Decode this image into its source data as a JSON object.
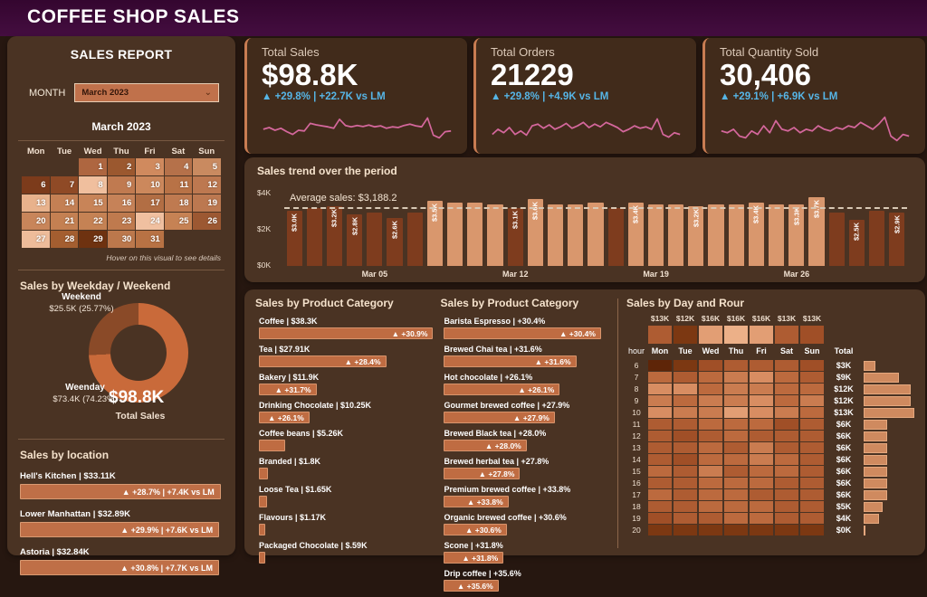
{
  "header": {
    "title": "COFFEE SHOP SALES"
  },
  "sidebar": {
    "title": "SALES REPORT",
    "month_label": "MONTH",
    "month_value": "March 2023",
    "hint": "Hover on this visual to see details",
    "locations_title": "Sales by location"
  },
  "kpis": [
    {
      "label": "Total Sales",
      "value": "$98.8K",
      "change": "▲ +29.8% | +22.7K vs LM",
      "spark": [
        45,
        50,
        42,
        48,
        38,
        30,
        42,
        40,
        62,
        58,
        55,
        52,
        48,
        74,
        56,
        52,
        56,
        53,
        57,
        52,
        55,
        48,
        52,
        50,
        56,
        60,
        55,
        52,
        78,
        28,
        20,
        38,
        40
      ]
    },
    {
      "label": "Total Orders",
      "value": "21229",
      "change": "▲ +29.8% | +4.9K vs LM",
      "spark": [
        30,
        45,
        35,
        50,
        30,
        40,
        28,
        55,
        60,
        48,
        58,
        45,
        52,
        62,
        48,
        55,
        65,
        50,
        60,
        52,
        65,
        58,
        50,
        38,
        45,
        55,
        48,
        52,
        45,
        75,
        30,
        22,
        35,
        30
      ]
    },
    {
      "label": "Total Quantity Sold",
      "value": "30,406",
      "change": "▲ +29.1% | +6.9K vs LM",
      "spark": [
        40,
        35,
        45,
        25,
        20,
        40,
        30,
        55,
        35,
        70,
        45,
        40,
        50,
        35,
        45,
        40,
        55,
        45,
        40,
        50,
        45,
        55,
        50,
        65,
        55,
        45,
        60,
        80,
        25,
        12,
        30,
        25
      ]
    }
  ],
  "colors": {
    "bar_dark": "#7e3c1e",
    "bar_light": "#d9976d",
    "accent": "#c87c52",
    "spark": "#d4679c"
  },
  "chart_data": [
    {
      "id": "trend",
      "type": "bar",
      "title": "Sales trend over the period",
      "ylabel": "Sales ($K)",
      "y_max": 4,
      "y_ticks": [
        "$4K",
        "$2K",
        "$0K"
      ],
      "average": 3.1882,
      "average_label": "Average sales: $3,188.2",
      "x_ticks": [
        {
          "label": "Mar 05",
          "index": 4
        },
        {
          "label": "Mar 12",
          "index": 11
        },
        {
          "label": "Mar 19",
          "index": 18
        },
        {
          "label": "Mar 26",
          "index": 25
        }
      ],
      "values": [
        3.0,
        3.1,
        3.2,
        2.8,
        2.9,
        2.6,
        2.9,
        3.5,
        3.4,
        3.4,
        3.3,
        3.1,
        3.6,
        3.3,
        3.3,
        3.4,
        3.1,
        3.4,
        3.3,
        3.3,
        3.2,
        3.3,
        3.3,
        3.4,
        3.3,
        3.3,
        3.7,
        2.9,
        2.5,
        3.0,
        2.9
      ],
      "labels": [
        "$3.0K",
        "",
        "$3.2K",
        "$2.8K",
        "",
        "$2.6K",
        "",
        "$3.5K",
        "",
        "",
        "",
        "$3.1K",
        "$3.6K",
        "",
        "",
        "",
        "",
        "$3.4K",
        "",
        "",
        "$3.2K",
        "",
        "",
        "$3.4K",
        "",
        "$3.3K",
        "$3.7K",
        "",
        "$2.5K",
        "",
        "$2.9K"
      ],
      "hi": [
        false,
        false,
        false,
        false,
        false,
        false,
        false,
        true,
        true,
        true,
        true,
        false,
        true,
        true,
        true,
        true,
        false,
        true,
        true,
        true,
        true,
        true,
        true,
        true,
        true,
        true,
        true,
        false,
        false,
        false,
        false
      ]
    },
    {
      "id": "weekday_weekend",
      "type": "pie",
      "title": "Sales by Weekday / Weekend",
      "slices": [
        {
          "label": "Weenday",
          "value_label": "$73.4K",
          "pct_label": "(74.23%)",
          "pct": 74.23,
          "color": "#c96a3a"
        },
        {
          "label": "Weekend",
          "value_label": "$25.5K",
          "pct_label": "(25.77%)",
          "pct": 25.77,
          "color": "#8a4a28"
        }
      ],
      "center_value": "$98.8K",
      "center_label": "Total Sales"
    },
    {
      "id": "category_sales",
      "type": "bar",
      "title": "Sales by Product Category",
      "items": [
        {
          "name": "Coffee",
          "value": "$38.3K",
          "badge": "▲ +30.9%",
          "pct": 100
        },
        {
          "name": "Tea",
          "value": "$27.91K",
          "badge": "▲ +28.4%",
          "pct": 73
        },
        {
          "name": "Bakery",
          "value": "$11.9K",
          "badge": "▲ +31.7%",
          "pct": 33
        },
        {
          "name": "Drinking Chocolate",
          "value": "$10.25K",
          "badge": "▲ +26.1%",
          "pct": 29
        },
        {
          "name": "Coffee beans",
          "value": "$5.26K",
          "badge": "",
          "pct": 15
        },
        {
          "name": "Branded",
          "value": "$1.8K",
          "badge": "",
          "pct": 5
        },
        {
          "name": "Loose Tea",
          "value": "$1.65K",
          "badge": "",
          "pct": 4.6
        },
        {
          "name": "Flavours",
          "value": "$1.17K",
          "badge": "",
          "pct": 3.4
        },
        {
          "name": "Packaged Chocolate",
          "value": "$.59K",
          "badge": "",
          "pct": 1.8
        }
      ]
    },
    {
      "id": "category_growth",
      "type": "bar",
      "title": "Sales by Product Category",
      "items": [
        {
          "name": "Barista Espresso",
          "value": "+30.4%",
          "badge": "▲ +30.4%",
          "pct": 95
        },
        {
          "name": "Brewed Chai tea",
          "value": "+31.6%",
          "badge": "▲ +31.6%",
          "pct": 80
        },
        {
          "name": "Hot chocolate",
          "value": "+26.1%",
          "badge": "▲ +26.1%",
          "pct": 70
        },
        {
          "name": "Gourmet brewed coffee",
          "value": "+27.9%",
          "badge": "▲ +27.9%",
          "pct": 67
        },
        {
          "name": "Brewed Black tea",
          "value": "+28.0%",
          "badge": "▲ +28.0%",
          "pct": 50
        },
        {
          "name": "Brewed herbal tea",
          "value": "+27.8%",
          "badge": "▲ +27.8%",
          "pct": 46
        },
        {
          "name": "Premium brewed coffee",
          "value": "+33.8%",
          "badge": "▲ +33.8%",
          "pct": 39
        },
        {
          "name": "Organic brewed coffee",
          "value": "+30.6%",
          "badge": "▲ +30.6%",
          "pct": 38
        },
        {
          "name": "Scone",
          "value": "+31.8%",
          "badge": "▲ +31.8%",
          "pct": 36
        },
        {
          "name": "Drip coffee",
          "value": "+35.6%",
          "badge": "▲ +35.6%",
          "pct": 33
        }
      ]
    },
    {
      "id": "locations",
      "type": "bar",
      "title": "Sales by location",
      "items": [
        {
          "name": "Hell's Kitchen",
          "value": "$33.11K",
          "badge": "▲ +28.7% | +7.4K vs LM",
          "pct": 99
        },
        {
          "name": "Lower Manhattan",
          "value": "$32.89K",
          "badge": "▲ +29.9% | +7.6K vs LM",
          "pct": 98.3
        },
        {
          "name": "Astoria",
          "value": "$32.84K",
          "badge": "▲ +30.8% | +7.7K vs LM",
          "pct": 98.2
        }
      ]
    },
    {
      "id": "calendar",
      "type": "heatmap",
      "title": "March 2023",
      "weekdays": [
        "Mon",
        "Tue",
        "Wed",
        "Thu",
        "Fri",
        "Sat",
        "Sun"
      ],
      "start_offset": 2,
      "days": [
        {
          "d": 1,
          "color": "#ae6640"
        },
        {
          "d": 2,
          "color": "#9b582f"
        },
        {
          "d": 3,
          "color": "#d08a5e"
        },
        {
          "d": 4,
          "color": "#b5714a"
        },
        {
          "d": 5,
          "color": "#c98a60"
        },
        {
          "d": 6,
          "color": "#7c3b1b"
        },
        {
          "d": 7,
          "color": "#8f4a26"
        },
        {
          "d": 8,
          "color": "#f0bf9e"
        },
        {
          "d": 9,
          "color": "#c07a50"
        },
        {
          "d": 10,
          "color": "#cc885c"
        },
        {
          "d": 11,
          "color": "#b87246"
        },
        {
          "d": 12,
          "color": "#bd7850"
        },
        {
          "d": 13,
          "color": "#e8b28c"
        },
        {
          "d": 14,
          "color": "#c48054"
        },
        {
          "d": 15,
          "color": "#c88458"
        },
        {
          "d": 16,
          "color": "#c68258"
        },
        {
          "d": 17,
          "color": "#b26e44"
        },
        {
          "d": 18,
          "color": "#bf7a50"
        },
        {
          "d": 19,
          "color": "#bc7850"
        },
        {
          "d": 20,
          "color": "#c8855a"
        },
        {
          "d": 21,
          "color": "#c48052"
        },
        {
          "d": 22,
          "color": "#c58254"
        },
        {
          "d": 23,
          "color": "#bf7a4e"
        },
        {
          "d": 24,
          "color": "#f0c0a0"
        },
        {
          "d": 25,
          "color": "#c68254"
        },
        {
          "d": 26,
          "color": "#9c5832"
        },
        {
          "d": 27,
          "color": "#eebc9a"
        },
        {
          "d": 28,
          "color": "#a45e30"
        },
        {
          "d": 29,
          "color": "#6e3210"
        },
        {
          "d": 30,
          "color": "#bc784c"
        },
        {
          "d": 31,
          "color": "#b87244"
        }
      ]
    },
    {
      "id": "day_hour",
      "type": "heatmap",
      "title": "Sales by Day and Rour",
      "hour_header": "hour",
      "total_header": "Total",
      "days": [
        "Mon",
        "Tue",
        "Wed",
        "Thu",
        "Fri",
        "Sat",
        "Sun"
      ],
      "palette": [
        "#5e2508",
        "#7c3812",
        "#8f431d",
        "#a04f27",
        "#ae5c32",
        "#bc6a3e",
        "#ca7c50",
        "#d88d62",
        "#e29e74",
        "#ecb088",
        "#f4c29c"
      ],
      "col_totals": [
        {
          "label": "$13K",
          "level": 4
        },
        {
          "label": "$12K",
          "level": 1
        },
        {
          "label": "$16K",
          "level": 8
        },
        {
          "label": "$16K",
          "level": 9
        },
        {
          "label": "$16K",
          "level": 8
        },
        {
          "label": "$13K",
          "level": 4
        },
        {
          "label": "$13K",
          "level": 3
        }
      ],
      "rows": [
        {
          "hour": "6",
          "levels": [
            0,
            1,
            3,
            4,
            4,
            4,
            3
          ],
          "total": "$3K",
          "bar_pct": 23
        },
        {
          "hour": "7",
          "levels": [
            5,
            4,
            5,
            6,
            7,
            5,
            4
          ],
          "total": "$9K",
          "bar_pct": 69
        },
        {
          "hour": "8",
          "levels": [
            7,
            7,
            5,
            6,
            6,
            5,
            5
          ],
          "total": "$12K",
          "bar_pct": 92
        },
        {
          "hour": "9",
          "levels": [
            6,
            5,
            6,
            6,
            7,
            5,
            6
          ],
          "total": "$12K",
          "bar_pct": 92
        },
        {
          "hour": "10",
          "levels": [
            7,
            6,
            6,
            8,
            7,
            6,
            5
          ],
          "total": "$13K",
          "bar_pct": 100
        },
        {
          "hour": "11",
          "levels": [
            4,
            4,
            5,
            5,
            5,
            3,
            4
          ],
          "total": "$6K",
          "bar_pct": 46
        },
        {
          "hour": "12",
          "levels": [
            4,
            3,
            4,
            5,
            4,
            4,
            4
          ],
          "total": "$6K",
          "bar_pct": 46
        },
        {
          "hour": "13",
          "levels": [
            4,
            4,
            5,
            4,
            6,
            4,
            4
          ],
          "total": "$6K",
          "bar_pct": 46
        },
        {
          "hour": "14",
          "levels": [
            4,
            3,
            5,
            5,
            6,
            5,
            4
          ],
          "total": "$6K",
          "bar_pct": 46
        },
        {
          "hour": "15",
          "levels": [
            5,
            4,
            6,
            4,
            5,
            5,
            4
          ],
          "total": "$6K",
          "bar_pct": 46
        },
        {
          "hour": "16",
          "levels": [
            4,
            4,
            5,
            5,
            5,
            4,
            4
          ],
          "total": "$6K",
          "bar_pct": 46
        },
        {
          "hour": "17",
          "levels": [
            5,
            4,
            5,
            5,
            4,
            4,
            4
          ],
          "total": "$6K",
          "bar_pct": 46
        },
        {
          "hour": "18",
          "levels": [
            4,
            4,
            5,
            5,
            5,
            4,
            4
          ],
          "total": "$5K",
          "bar_pct": 38
        },
        {
          "hour": "19",
          "levels": [
            3,
            4,
            4,
            5,
            5,
            4,
            4
          ],
          "total": "$4K",
          "bar_pct": 31
        },
        {
          "hour": "20",
          "levels": [
            1,
            1,
            1,
            1,
            1,
            1,
            1
          ],
          "total": "$0K",
          "bar_pct": 3
        }
      ]
    }
  ]
}
